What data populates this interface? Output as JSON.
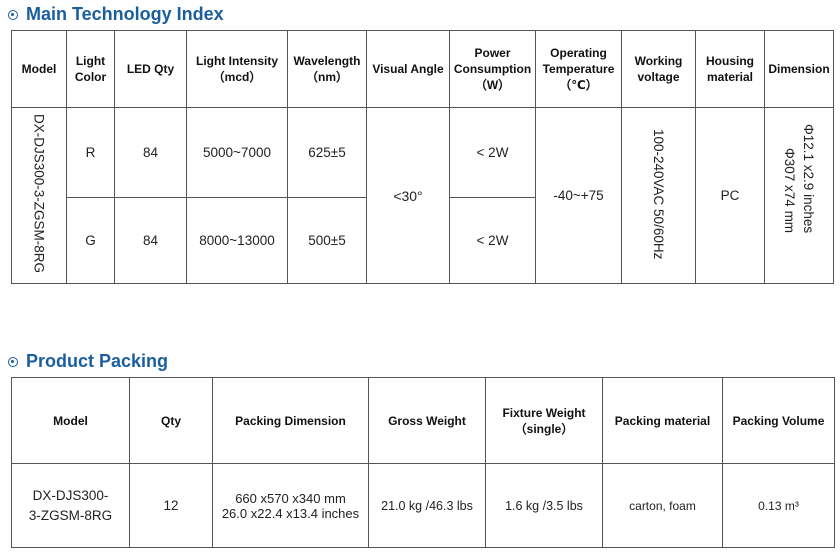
{
  "tech": {
    "title": "Main Technology Index",
    "headers": {
      "model": "Model",
      "light_color": [
        "Light",
        "Color"
      ],
      "led_qty": "LED Qty",
      "intensity": [
        "Light Intensity",
        "（mcd）"
      ],
      "wavelength": [
        "Wavelength",
        "（nm）"
      ],
      "visual_angle": "Visual Angle",
      "power": [
        "Power",
        "Consumption",
        "（W）"
      ],
      "op_temp": [
        "Operating",
        "Temperature",
        "（℃）"
      ],
      "voltage": [
        "Working",
        "voltage"
      ],
      "housing": [
        "Housing",
        "material"
      ],
      "dimension": "Dimension"
    },
    "model": "DX-DJS300-3-ZGSM-8RG",
    "rows": [
      {
        "color": "R",
        "qty": "84",
        "intensity": "5000~7000",
        "wavelength": "625±5",
        "power": "< 2W"
      },
      {
        "color": "G",
        "qty": "84",
        "intensity": "8000~13000",
        "wavelength": "500±5",
        "power": "< 2W"
      }
    ],
    "visual_angle": "<30°",
    "op_temp": "-40~+75",
    "voltage": "100-240VAC 50/60Hz",
    "housing": "PC",
    "dimension": [
      "Φ307 x74 mm",
      "Φ12.1 x2.9 inches"
    ]
  },
  "packing": {
    "title": "Product Packing",
    "headers": {
      "model": "Model",
      "qty": "Qty",
      "dimension": "Packing Dimension",
      "gross": "Gross Weight",
      "fixture": [
        "Fixture Weight",
        "（single）"
      ],
      "material": "Packing material",
      "volume": "Packing Volume"
    },
    "row": {
      "model": [
        "DX-DJS300-",
        "3-ZGSM-8RG"
      ],
      "qty": "12",
      "dimension": [
        "660 x570 x340 mm",
        "26.0 x22.4 x13.4 inches"
      ],
      "gross": "21.0 kg /46.3 lbs",
      "fixture": "1.6 kg /3.5 lbs",
      "material": "carton, foam",
      "volume": "0.13 m³"
    }
  }
}
